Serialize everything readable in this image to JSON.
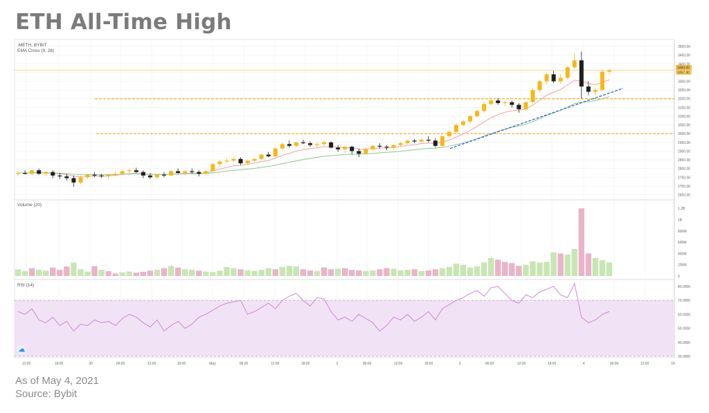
{
  "page": {
    "title": "ETH All-Time High",
    "footer_date": "As of May 4, 2021",
    "footer_source": "Source: Bybit"
  },
  "colors": {
    "up_candle": "#f5b81c",
    "down_candle": "#1e1e1e",
    "ema_fast": "#f0a0a0",
    "ema_slow": "#8cc88c",
    "support_line": "#f5a623",
    "trend_line": "#3a6fd0",
    "volume_up": "#c8e6b4",
    "volume_down": "#eab4c8",
    "rsi_line": "#c98ad6",
    "rsi_band": "#f2e2f5"
  },
  "chart_data": {
    "type": "candlestick",
    "symbol": ".METH, BYBIT",
    "indicator_label": "EMA Cross (9, 26)",
    "price_axis": {
      "range": [
        2640,
        3520
      ],
      "ticks": [
        "3500.00",
        "3450.00",
        "3400.00",
        "3350.00",
        "3300.00",
        "3250.00",
        "3200.00",
        "3150.00",
        "3100.00",
        "3050.00",
        "3000.00",
        "2950.00",
        "2900.00",
        "2850.00",
        "2800.00",
        "2750.00",
        "2700.00",
        "2650.00"
      ]
    },
    "price_tags": [
      "3360.00",
      "3357.30"
    ],
    "x_axis_ticks": [
      "12:00",
      "18:00",
      "30",
      "06:00",
      "12:00",
      "18:00",
      "May",
      "06:00",
      "12:00",
      "18:00",
      "2",
      "06:00",
      "12:00",
      "18:00",
      "3",
      "06:00",
      "12:00",
      "18:00",
      "4",
      "06:00",
      "12:00",
      "18"
    ],
    "horizontal_levels": [
      3363,
      3200,
      3000
    ],
    "trend_line": {
      "from": [
        22.5,
        2915
      ],
      "to": [
        25.0,
        3260
      ]
    },
    "candles": [
      [
        2770,
        2785,
        2755,
        2775
      ],
      [
        2775,
        2790,
        2765,
        2770
      ],
      [
        2770,
        2795,
        2760,
        2790
      ],
      [
        2790,
        2800,
        2765,
        2770
      ],
      [
        2770,
        2785,
        2755,
        2780
      ],
      [
        2780,
        2790,
        2745,
        2760
      ],
      [
        2760,
        2775,
        2740,
        2755
      ],
      [
        2755,
        2770,
        2730,
        2745
      ],
      [
        2745,
        2760,
        2695,
        2720
      ],
      [
        2720,
        2760,
        2710,
        2750
      ],
      [
        2750,
        2770,
        2740,
        2765
      ],
      [
        2765,
        2780,
        2750,
        2760
      ],
      [
        2760,
        2770,
        2745,
        2755
      ],
      [
        2755,
        2770,
        2740,
        2765
      ],
      [
        2765,
        2785,
        2755,
        2770
      ],
      [
        2770,
        2795,
        2765,
        2785
      ],
      [
        2785,
        2800,
        2770,
        2790
      ],
      [
        2790,
        2805,
        2775,
        2780
      ],
      [
        2780,
        2790,
        2745,
        2760
      ],
      [
        2760,
        2775,
        2740,
        2750
      ],
      [
        2750,
        2770,
        2740,
        2765
      ],
      [
        2765,
        2780,
        2750,
        2760
      ],
      [
        2760,
        2790,
        2755,
        2785
      ],
      [
        2785,
        2800,
        2770,
        2775
      ],
      [
        2775,
        2790,
        2760,
        2785
      ],
      [
        2785,
        2800,
        2770,
        2780
      ],
      [
        2780,
        2790,
        2755,
        2770
      ],
      [
        2770,
        2790,
        2765,
        2785
      ],
      [
        2785,
        2830,
        2780,
        2825
      ],
      [
        2825,
        2850,
        2810,
        2840
      ],
      [
        2840,
        2860,
        2830,
        2845
      ],
      [
        2845,
        2865,
        2835,
        2855
      ],
      [
        2855,
        2865,
        2820,
        2830
      ],
      [
        2830,
        2850,
        2820,
        2845
      ],
      [
        2845,
        2860,
        2835,
        2855
      ],
      [
        2855,
        2885,
        2850,
        2880
      ],
      [
        2880,
        2895,
        2865,
        2870
      ],
      [
        2870,
        2920,
        2865,
        2915
      ],
      [
        2915,
        2950,
        2905,
        2940
      ],
      [
        2940,
        2960,
        2920,
        2930
      ],
      [
        2930,
        2955,
        2920,
        2950
      ],
      [
        2950,
        2965,
        2940,
        2945
      ],
      [
        2945,
        2955,
        2925,
        2935
      ],
      [
        2935,
        2950,
        2920,
        2940
      ],
      [
        2940,
        2960,
        2930,
        2950
      ],
      [
        2950,
        2955,
        2915,
        2920
      ],
      [
        2920,
        2935,
        2895,
        2910
      ],
      [
        2910,
        2930,
        2890,
        2925
      ],
      [
        2925,
        2930,
        2880,
        2900
      ],
      [
        2900,
        2915,
        2865,
        2885
      ],
      [
        2885,
        2920,
        2880,
        2910
      ],
      [
        2910,
        2935,
        2900,
        2930
      ],
      [
        2930,
        2945,
        2915,
        2925
      ],
      [
        2925,
        2935,
        2905,
        2920
      ],
      [
        2920,
        2940,
        2910,
        2935
      ],
      [
        2935,
        2955,
        2925,
        2945
      ],
      [
        2945,
        2965,
        2935,
        2960
      ],
      [
        2960,
        2970,
        2945,
        2955
      ],
      [
        2955,
        2975,
        2950,
        2965
      ],
      [
        2965,
        2985,
        2950,
        2960
      ],
      [
        2960,
        2975,
        2920,
        2930
      ],
      [
        2930,
        2990,
        2925,
        2985
      ],
      [
        2985,
        3020,
        2975,
        3010
      ],
      [
        3010,
        3060,
        3000,
        3050
      ],
      [
        3050,
        3080,
        3040,
        3070
      ],
      [
        3070,
        3110,
        3060,
        3100
      ],
      [
        3100,
        3140,
        3090,
        3130
      ],
      [
        3130,
        3180,
        3120,
        3170
      ],
      [
        3170,
        3200,
        3160,
        3190
      ],
      [
        3190,
        3205,
        3165,
        3175
      ],
      [
        3175,
        3190,
        3155,
        3180
      ],
      [
        3180,
        3190,
        3150,
        3165
      ],
      [
        3165,
        3175,
        3120,
        3140
      ],
      [
        3140,
        3185,
        3130,
        3180
      ],
      [
        3180,
        3260,
        3175,
        3250
      ],
      [
        3250,
        3310,
        3240,
        3300
      ],
      [
        3300,
        3350,
        3280,
        3340
      ],
      [
        3340,
        3360,
        3290,
        3300
      ],
      [
        3300,
        3340,
        3285,
        3320
      ],
      [
        3320,
        3390,
        3310,
        3380
      ],
      [
        3380,
        3460,
        3370,
        3420
      ],
      [
        3420,
        3470,
        3200,
        3270
      ],
      [
        3270,
        3300,
        3220,
        3240
      ],
      [
        3240,
        3265,
        3220,
        3250
      ],
      [
        3250,
        3370,
        3240,
        3355
      ],
      [
        3355,
        3370,
        3340,
        3362
      ]
    ],
    "volume": {
      "label": "Volume (20)",
      "range": [
        0,
        1300
      ],
      "ticks": [
        "1.2B",
        "1B",
        "800M",
        "600M",
        "400M",
        "200M",
        "0"
      ],
      "values": [
        120,
        90,
        140,
        110,
        95,
        150,
        110,
        170,
        240,
        120,
        80,
        175,
        110,
        85,
        45,
        65,
        80,
        60,
        75,
        95,
        110,
        140,
        180,
        150,
        120,
        110,
        95,
        80,
        70,
        95,
        160,
        140,
        120,
        100,
        90,
        110,
        140,
        120,
        160,
        180,
        170,
        120,
        100,
        90,
        150,
        120,
        130,
        140,
        110,
        100,
        90,
        100,
        120,
        140,
        130,
        100,
        110,
        120,
        90,
        100,
        120,
        140,
        160,
        220,
        200,
        150,
        170,
        240,
        320,
        290,
        250,
        230,
        180,
        200,
        260,
        240,
        250,
        420,
        400,
        380,
        480,
        1200,
        400,
        320,
        280,
        240
      ],
      "up": [
        1,
        1,
        0,
        1,
        1,
        0,
        0,
        0,
        1,
        1,
        1,
        0,
        1,
        0,
        0,
        1,
        1,
        0,
        0,
        0,
        1,
        0,
        1,
        0,
        1,
        1,
        0,
        1,
        1,
        1,
        1,
        1,
        0,
        1,
        1,
        1,
        1,
        0,
        1,
        1,
        1,
        0,
        0,
        1,
        0,
        0,
        1,
        0,
        0,
        0,
        1,
        1,
        0,
        0,
        1,
        1,
        1,
        0,
        1,
        0,
        0,
        1,
        1,
        1,
        1,
        1,
        1,
        1,
        1,
        0,
        0,
        0,
        0,
        1,
        1,
        1,
        1,
        1,
        0,
        1,
        1,
        0,
        0,
        1,
        1,
        1
      ]
    },
    "rsi": {
      "label": "RSI (14)",
      "range": [
        30,
        82
      ],
      "ticks": [
        "80.0000",
        "70.0000",
        "60.0000",
        "50.0000",
        "40.0000",
        "30.0000"
      ],
      "band": [
        30,
        70
      ],
      "values": [
        62,
        60,
        64,
        56,
        54,
        58,
        52,
        55,
        48,
        53,
        52,
        56,
        54,
        55,
        52,
        57,
        60,
        58,
        54,
        51,
        56,
        48,
        52,
        55,
        50,
        53,
        58,
        60,
        63,
        66,
        68,
        69,
        70,
        60,
        62,
        65,
        68,
        64,
        70,
        73,
        75,
        70,
        66,
        72,
        71,
        62,
        56,
        58,
        55,
        60,
        57,
        54,
        48,
        52,
        58,
        56,
        60,
        55,
        58,
        62,
        56,
        64,
        67,
        70,
        72,
        75,
        77,
        73,
        79,
        80,
        75,
        70,
        68,
        74,
        72,
        76,
        78,
        80,
        74,
        72,
        82,
        58,
        54,
        56,
        60,
        62
      ]
    }
  }
}
